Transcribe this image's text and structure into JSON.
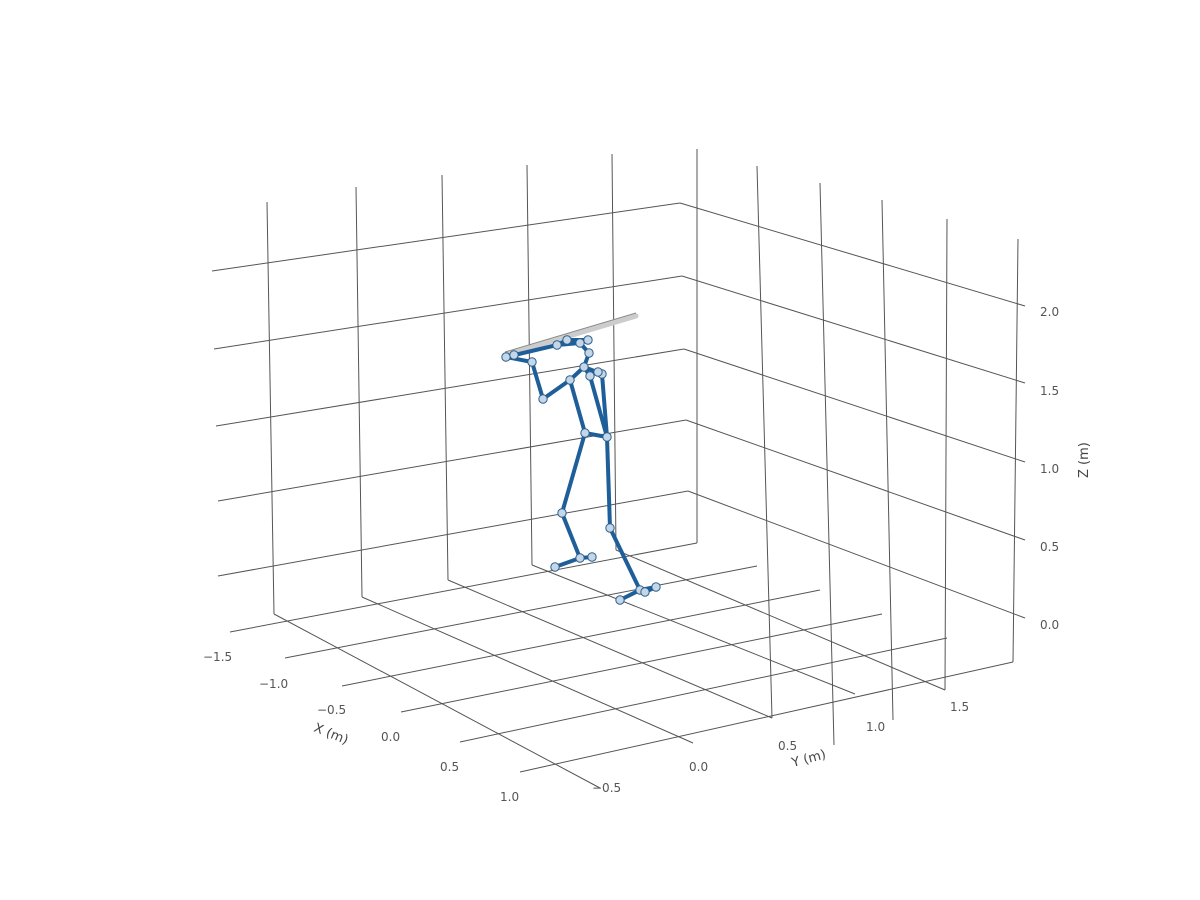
{
  "chart_data": {
    "type": "skeleton-3d",
    "axes": {
      "x": {
        "label": "X (m)",
        "ticks": [
          "−1.5",
          "−1.0",
          "−0.5",
          "0.0",
          "0.5",
          "1.0"
        ]
      },
      "y": {
        "label": "Y (m)",
        "ticks": [
          "−0.5",
          "0.0",
          "0.5",
          "1.0",
          "1.5"
        ]
      },
      "z": {
        "label": "Z (m)",
        "ticks": [
          "0.0",
          "0.5",
          "1.0",
          "1.5",
          "2.0"
        ]
      }
    },
    "grid": true,
    "colors": {
      "bone": "#1f5f99",
      "joint": "#c4d7e8",
      "bat": "#cccccc",
      "grid": "#555555"
    }
  }
}
